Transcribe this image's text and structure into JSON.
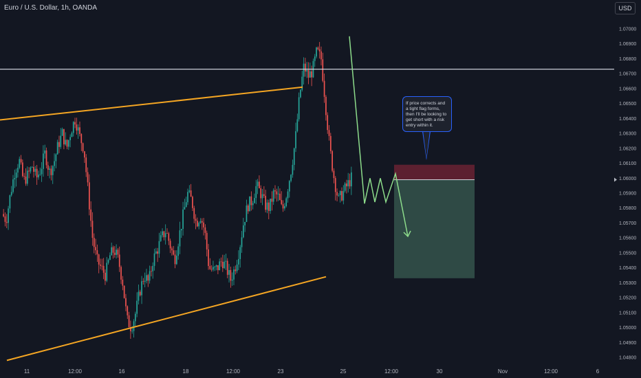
{
  "header": {
    "title": "Euro / U.S. Dollar, 1h, OANDA",
    "currency": "USD"
  },
  "annotation": {
    "text": "If price corrects and a tight flag forms, then I'll be looking to get short with a risk entry within it."
  },
  "colors": {
    "background": "#131722",
    "up_candle": "#26a69a",
    "down_candle": "#ef5350",
    "trendline": "#f5a623",
    "projection": "#8ddc8b",
    "horizontal_level": "#e0e3eb",
    "stop_zone": "#5c2030",
    "target_zone": "#2f4a45"
  },
  "chart_data": {
    "type": "candlestick",
    "title": "Euro / U.S. Dollar, 1h, OANDA",
    "y_axis": {
      "ticks": [
        "1.07000",
        "1.06900",
        "1.06800",
        "1.06700",
        "1.06600",
        "1.06500",
        "1.06400",
        "1.06300",
        "1.06200",
        "1.06100",
        "1.06000",
        "1.05900",
        "1.05800",
        "1.05700",
        "1.05600",
        "1.05500",
        "1.05400",
        "1.05300",
        "1.05200",
        "1.05100",
        "1.05000",
        "1.04900",
        "1.04800"
      ],
      "range": [
        1.0476,
        1.0712
      ]
    },
    "x_axis": {
      "ticks": [
        "11",
        "12:00",
        "16",
        "18",
        "12:00",
        "23",
        "25",
        "12:00",
        "30",
        "Nov",
        "12:00",
        "6"
      ]
    },
    "price_path": [
      1.0576,
      1.0572,
      1.059,
      1.0605,
      1.0612,
      1.0598,
      1.0602,
      1.0608,
      1.06,
      1.0606,
      1.0617,
      1.0604,
      1.061,
      1.0622,
      1.063,
      1.062,
      1.0632,
      1.064,
      1.0628,
      1.062,
      1.059,
      1.056,
      1.0545,
      1.054,
      1.0535,
      1.0548,
      1.0552,
      1.0545,
      1.053,
      1.0505,
      1.05,
      1.051,
      1.0525,
      1.0535,
      1.053,
      1.0545,
      1.0552,
      1.056,
      1.0565,
      1.0555,
      1.0545,
      1.056,
      1.0575,
      1.059,
      1.0585,
      1.057,
      1.0575,
      1.0565,
      1.054,
      1.0538,
      1.054,
      1.0545,
      1.054,
      1.0532,
      1.054,
      1.0552,
      1.057,
      1.0582,
      1.0585,
      1.0595,
      1.059,
      1.0582,
      1.058,
      1.059,
      1.0588,
      1.0578,
      1.059,
      1.0605,
      1.0625,
      1.0655,
      1.0675,
      1.0668,
      1.0672,
      1.0685,
      1.068,
      1.065,
      1.062,
      1.06,
      1.0585,
      1.059,
      1.0595,
      1.06
    ],
    "levels": {
      "horizontal_resistance": 1.0673,
      "position_entry": 1.0599,
      "stop_top": 1.0609,
      "target": 1.0533
    },
    "trendlines": {
      "upper": [
        [
          0,
          1.0639
        ],
        [
          440,
          1.0661
        ]
      ],
      "lower": [
        [
          10,
          1.0478
        ],
        [
          474,
          1.0534
        ]
      ]
    },
    "projection_path": [
      [
        508,
        1.0695
      ],
      [
        530,
        1.0583
      ],
      [
        538,
        1.06
      ],
      [
        545,
        1.0584
      ],
      [
        553,
        1.06
      ],
      [
        561,
        1.0584
      ],
      [
        575,
        1.0603
      ],
      [
        593,
        1.0561
      ]
    ],
    "position_box": {
      "x_start": 573,
      "x_end": 690
    },
    "grid": false,
    "legend": "none"
  }
}
